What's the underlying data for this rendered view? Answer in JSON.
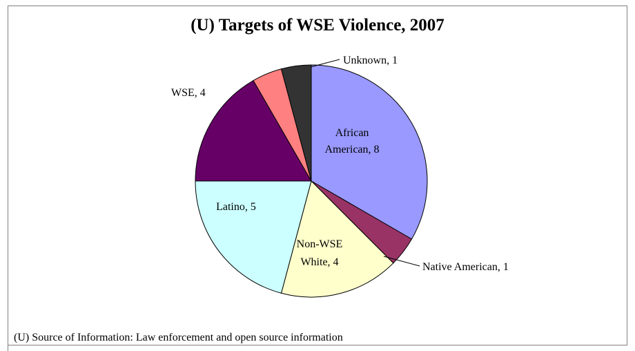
{
  "chart_data": {
    "type": "pie",
    "title": "(U) Targets of WSE Violence, 2007",
    "slices": [
      {
        "label_lines": [
          "African",
          "American, 8"
        ],
        "value": 8,
        "color": "#9999ff"
      },
      {
        "label_lines": [
          "Native American, 1"
        ],
        "value": 1,
        "color": "#993366"
      },
      {
        "label_lines": [
          "Non-WSE",
          "White, 4"
        ],
        "value": 4,
        "color": "#ffffcc"
      },
      {
        "label_lines": [
          "Latino, 5"
        ],
        "value": 5,
        "color": "#ccffff"
      },
      {
        "label_lines": [
          "WSE, 4"
        ],
        "value": 4,
        "color": "#660066"
      },
      {
        "label_lines": [
          ""
        ],
        "value": 1,
        "color": "#ff8080"
      },
      {
        "label_lines": [
          "Unknown, 1"
        ],
        "value": 1,
        "color": "#333333"
      }
    ],
    "source": "(U) Source of Information: Law enforcement and open source information"
  }
}
